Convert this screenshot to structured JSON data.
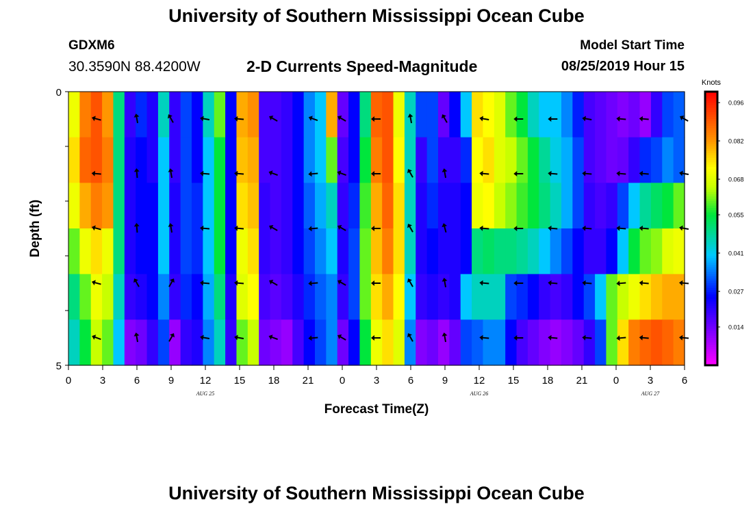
{
  "header": {
    "title": "University of Southern Mississippi Ocean Cube",
    "station": "GDXM6",
    "coordinates": "30.3590N 88.4200W",
    "plot_title": "2-D Currents Speed-Magnitude",
    "model_start_label": "Model Start Time",
    "model_start_value": "08/25/2019 Hour 15"
  },
  "footer": {
    "title": "University of Southern Mississippi Ocean Cube"
  },
  "chart_data": {
    "type": "heatmap",
    "title": "2-D Currents Speed-Magnitude",
    "xlabel": "Forecast Time(Z)",
    "ylabel": "Depth (ft)",
    "y_range": [
      0,
      5
    ],
    "y_tick_labels": [
      "0",
      "5"
    ],
    "x_range_hours": [
      0,
      54
    ],
    "x_tick_labels": [
      "0",
      "3",
      "6",
      "9",
      "12",
      "15",
      "18",
      "21",
      "0",
      "3",
      "6",
      "9",
      "12",
      "15",
      "18",
      "21",
      "0",
      "3",
      "6"
    ],
    "date_labels": [
      {
        "label": "AUG 25",
        "hour": 12
      },
      {
        "label": "AUG 26",
        "hour": 36
      },
      {
        "label": "AUG 27",
        "hour": 51
      }
    ],
    "colorbar": {
      "unit": "Knots",
      "min": 0.0,
      "max": 0.1,
      "tick_labels": [
        "0.096",
        "0.082",
        "0.068",
        "0.055",
        "0.041",
        "0.027",
        "0.014"
      ],
      "tick_values": [
        0.096,
        0.082,
        0.068,
        0.055,
        0.041,
        0.027,
        0.014
      ]
    },
    "depth_layers": 5,
    "hours": [
      0,
      1,
      2,
      3,
      4,
      5,
      6,
      7,
      8,
      9,
      10,
      11,
      12,
      13,
      14,
      15,
      16,
      17,
      18,
      19,
      20,
      21,
      22,
      23,
      24,
      25,
      26,
      27,
      28,
      29,
      30,
      31,
      32,
      33,
      34,
      35,
      36,
      37,
      38,
      39,
      40,
      41,
      42,
      43,
      44,
      45,
      46,
      47,
      48,
      49,
      50,
      51,
      52,
      53,
      54
    ],
    "speed_knots": [
      [
        0.07,
        0.085,
        0.09,
        0.082,
        0.05,
        0.02,
        0.028,
        0.022,
        0.045,
        0.02,
        0.03,
        0.025,
        0.045,
        0.06,
        0.025,
        0.08,
        0.083,
        0.018,
        0.018,
        0.02,
        0.025,
        0.035,
        0.04,
        0.08,
        0.015,
        0.025,
        0.05,
        0.088,
        0.09,
        0.07,
        0.045,
        0.03,
        0.03,
        0.015,
        0.025,
        0.04,
        0.075,
        0.072,
        0.068,
        0.06,
        0.055,
        0.045,
        0.04,
        0.04,
        0.035,
        0.027,
        0.018,
        0.016,
        0.014,
        0.012,
        0.014,
        0.01,
        0.02,
        0.03,
        0.032
      ],
      [
        0.075,
        0.088,
        0.09,
        0.085,
        0.05,
        0.022,
        0.025,
        0.022,
        0.04,
        0.02,
        0.03,
        0.025,
        0.04,
        0.055,
        0.025,
        0.078,
        0.08,
        0.018,
        0.018,
        0.02,
        0.025,
        0.035,
        0.04,
        0.06,
        0.018,
        0.025,
        0.055,
        0.085,
        0.09,
        0.072,
        0.045,
        0.02,
        0.03,
        0.02,
        0.02,
        0.028,
        0.072,
        0.075,
        0.068,
        0.065,
        0.06,
        0.055,
        0.048,
        0.042,
        0.038,
        0.03,
        0.018,
        0.016,
        0.014,
        0.015,
        0.02,
        0.028,
        0.03,
        0.035,
        0.032
      ],
      [
        0.07,
        0.08,
        0.085,
        0.082,
        0.05,
        0.022,
        0.025,
        0.025,
        0.04,
        0.022,
        0.03,
        0.028,
        0.04,
        0.055,
        0.025,
        0.075,
        0.078,
        0.02,
        0.018,
        0.02,
        0.025,
        0.032,
        0.038,
        0.045,
        0.02,
        0.028,
        0.058,
        0.08,
        0.088,
        0.075,
        0.045,
        0.022,
        0.028,
        0.022,
        0.022,
        0.025,
        0.07,
        0.072,
        0.065,
        0.062,
        0.058,
        0.055,
        0.05,
        0.045,
        0.038,
        0.03,
        0.02,
        0.018,
        0.02,
        0.03,
        0.04,
        0.048,
        0.052,
        0.055,
        0.06
      ],
      [
        0.06,
        0.07,
        0.075,
        0.07,
        0.05,
        0.022,
        0.025,
        0.025,
        0.04,
        0.022,
        0.03,
        0.028,
        0.04,
        0.055,
        0.025,
        0.07,
        0.075,
        0.02,
        0.018,
        0.02,
        0.025,
        0.03,
        0.035,
        0.04,
        0.022,
        0.03,
        0.06,
        0.078,
        0.085,
        0.075,
        0.045,
        0.022,
        0.025,
        0.022,
        0.022,
        0.025,
        0.05,
        0.052,
        0.05,
        0.05,
        0.048,
        0.045,
        0.04,
        0.035,
        0.03,
        0.025,
        0.02,
        0.02,
        0.025,
        0.04,
        0.055,
        0.06,
        0.062,
        0.068,
        0.07
      ],
      [
        0.05,
        0.06,
        0.07,
        0.065,
        0.045,
        0.02,
        0.022,
        0.025,
        0.035,
        0.02,
        0.028,
        0.025,
        0.038,
        0.05,
        0.022,
        0.068,
        0.072,
        0.018,
        0.016,
        0.018,
        0.022,
        0.028,
        0.032,
        0.035,
        0.02,
        0.03,
        0.06,
        0.075,
        0.08,
        0.072,
        0.04,
        0.02,
        0.022,
        0.02,
        0.022,
        0.04,
        0.045,
        0.045,
        0.045,
        0.03,
        0.028,
        0.025,
        0.02,
        0.018,
        0.02,
        0.025,
        0.03,
        0.04,
        0.06,
        0.065,
        0.07,
        0.075,
        0.078,
        0.08,
        0.08
      ],
      [
        0.045,
        0.055,
        0.065,
        0.06,
        0.04,
        0.012,
        0.014,
        0.02,
        0.03,
        0.01,
        0.02,
        0.022,
        0.035,
        0.045,
        0.02,
        0.06,
        0.065,
        0.014,
        0.012,
        0.01,
        0.018,
        0.025,
        0.03,
        0.035,
        0.014,
        0.025,
        0.055,
        0.07,
        0.075,
        0.068,
        0.035,
        0.012,
        0.014,
        0.01,
        0.015,
        0.03,
        0.032,
        0.035,
        0.035,
        0.025,
        0.018,
        0.015,
        0.012,
        0.01,
        0.012,
        0.015,
        0.02,
        0.03,
        0.06,
        0.075,
        0.085,
        0.088,
        0.09,
        0.088,
        0.085
      ]
    ],
    "vector_hours": [
      2.5,
      6,
      9,
      12,
      15,
      18,
      21.5,
      24,
      27,
      30,
      33,
      36.5,
      39.5,
      42.5,
      45.5,
      48.5,
      50.5,
      54
    ],
    "vector_depths": [
      0.5,
      1.5,
      2.5,
      3.5,
      4.5
    ],
    "vector_directions_deg": [
      [
        -165,
        -100,
        -120,
        -170,
        -175,
        -150,
        -160,
        -150,
        180,
        -100,
        -120,
        -170,
        180,
        180,
        -170,
        -175,
        -175,
        -150
      ],
      [
        -175,
        -95,
        -100,
        -175,
        -175,
        -160,
        175,
        -160,
        180,
        -120,
        -100,
        -175,
        180,
        -175,
        -175,
        -175,
        -175,
        -170
      ],
      [
        -165,
        -95,
        -100,
        -175,
        -175,
        -150,
        175,
        -150,
        180,
        -120,
        -105,
        -175,
        180,
        -175,
        -175,
        -175,
        -175,
        -170
      ],
      [
        -165,
        -120,
        -60,
        -175,
        -175,
        -150,
        175,
        -150,
        180,
        -120,
        -100,
        -175,
        180,
        -175,
        -175,
        175,
        -175,
        -175
      ],
      [
        -160,
        -100,
        -60,
        -170,
        -170,
        -160,
        175,
        -150,
        180,
        -120,
        -100,
        -175,
        180,
        -175,
        -175,
        175,
        -175,
        -175
      ]
    ]
  }
}
